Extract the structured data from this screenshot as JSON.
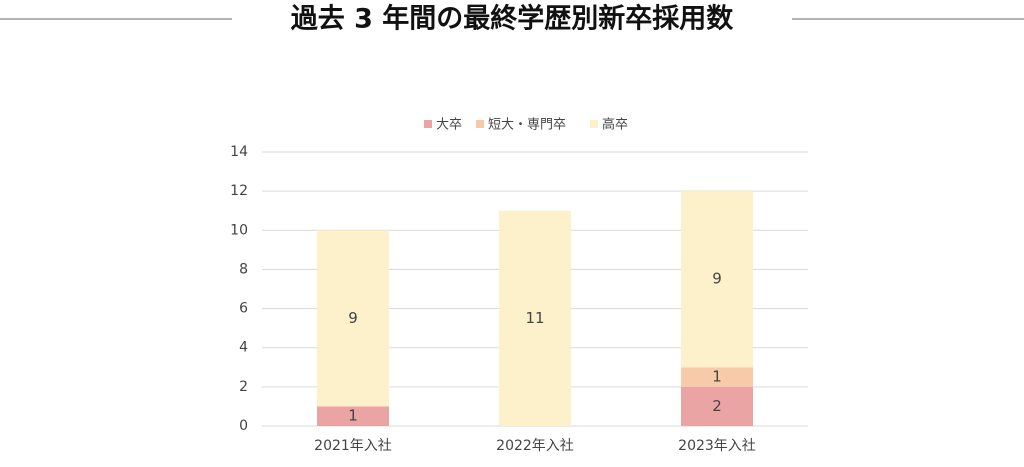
{
  "chart_data": {
    "type": "stacked_bar",
    "title": "過去 3 年間の最終学歴別新卒採用数",
    "categories": [
      "2021年入社",
      "2022年入社",
      "2023年入社"
    ],
    "series": [
      {
        "name": "大卒",
        "color": "#eaa4a4",
        "values": [
          1,
          0,
          2
        ]
      },
      {
        "name": "短大・専門卒",
        "color": "#f8caa9",
        "values": [
          0,
          0,
          1
        ]
      },
      {
        "name": "高卒",
        "color": "#fdf1cb",
        "values": [
          9,
          11,
          9
        ]
      }
    ],
    "ylim": [
      0,
      14
    ],
    "yticks": [
      0,
      2,
      4,
      6,
      8,
      10,
      12,
      14
    ],
    "grid": true,
    "legend": "top"
  }
}
